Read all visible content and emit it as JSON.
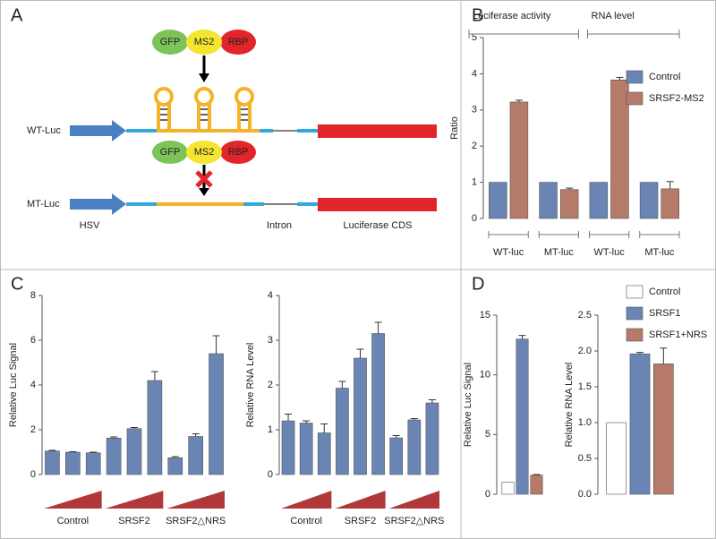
{
  "panels": [
    "A",
    "B",
    "C",
    "D"
  ],
  "diagram": {
    "protein_labels": [
      "GFP",
      "MS2",
      "RBP"
    ],
    "rows": [
      "WT-Luc",
      "MT-Luc"
    ],
    "region_labels": [
      "HSV",
      "Intron",
      "Luciferase CDS"
    ]
  },
  "chart_data": [
    {
      "type": "bar",
      "y_label": "Ratio",
      "categories": [
        "WT-luc",
        "MT-luc",
        "WT-luc",
        "MT-luc"
      ],
      "category_groups": [
        "Luciferase activity",
        "RNA level"
      ],
      "series": [
        {
          "name": "Control",
          "color": "#6a85b3",
          "values": [
            1,
            1,
            1,
            1
          ]
        },
        {
          "name": "SRSF2-MS2",
          "color": "#b57a68",
          "values": [
            3.22,
            0.8,
            3.83,
            0.82
          ],
          "errors": [
            0.05,
            0.04,
            0.07,
            0.2
          ]
        }
      ],
      "ylim": [
        0,
        5
      ],
      "yticks": [
        0,
        1,
        2,
        3,
        4,
        5
      ]
    },
    {
      "type": "bar",
      "y_label": "Relative Luc Signal",
      "color": "#6a85b3",
      "groups": [
        {
          "name": "Control",
          "values": [
            1.05,
            1.0,
            0.97
          ],
          "errors": [
            0.03,
            0.02,
            0.03
          ]
        },
        {
          "name": "SRSF2",
          "values": [
            1.63,
            2.05,
            4.2
          ],
          "errors": [
            0.05,
            0.05,
            0.4
          ]
        },
        {
          "name": "SRSF2△NRS",
          "values": [
            0.75,
            1.7,
            5.4
          ],
          "errors": [
            0.05,
            0.12,
            0.8
          ]
        }
      ],
      "ylim": [
        0,
        8
      ],
      "yticks": [
        0,
        2,
        4,
        6,
        8
      ]
    },
    {
      "type": "bar",
      "y_label": "Relative RNA Level",
      "color": "#6a85b3",
      "groups": [
        {
          "name": "Control",
          "values": [
            1.2,
            1.15,
            0.93
          ],
          "errors": [
            0.15,
            0.05,
            0.2
          ]
        },
        {
          "name": "SRSF2",
          "values": [
            1.93,
            2.6,
            3.15
          ],
          "errors": [
            0.15,
            0.2,
            0.25
          ]
        },
        {
          "name": "SRSF2△NRS",
          "values": [
            0.82,
            1.22,
            1.6
          ],
          "errors": [
            0.05,
            0.03,
            0.07
          ]
        }
      ],
      "ylim": [
        0,
        4
      ],
      "yticks": [
        0,
        1,
        2,
        3,
        4
      ]
    },
    {
      "type": "bar",
      "y_label": "Relative Luc Signal",
      "categories": [
        null
      ],
      "series": [
        {
          "color": "#ffffff",
          "values": [
            1
          ]
        },
        {
          "color": "#6a85b3",
          "values": [
            13
          ],
          "errors": [
            0.3
          ]
        },
        {
          "color": "#b57a68",
          "values": [
            1.6
          ],
          "errors": [
            0.05
          ]
        }
      ],
      "ylim": [
        0,
        15
      ],
      "yticks": [
        0,
        5,
        10,
        15
      ]
    },
    {
      "type": "bar",
      "y_label": "Relative RNA Level",
      "categories": [
        null
      ],
      "series": [
        {
          "name": "Control",
          "color": "#ffffff",
          "values": [
            1
          ]
        },
        {
          "name": "SRSF1",
          "color": "#6a85b3",
          "values": [
            1.96
          ],
          "errors": [
            0.02
          ]
        },
        {
          "name": "SRSF1+NRS",
          "color": "#b57a68",
          "values": [
            1.82
          ],
          "errors": [
            0.22
          ]
        }
      ],
      "ylim": [
        0,
        2.5
      ],
      "yticks": [
        {
          "value": 0,
          "label": "0.0"
        },
        0.5,
        {
          "value": 1,
          "label": "1.0"
        },
        1.5,
        {
          "value": 2,
          "label": "2.0"
        },
        2.5
      ]
    }
  ]
}
